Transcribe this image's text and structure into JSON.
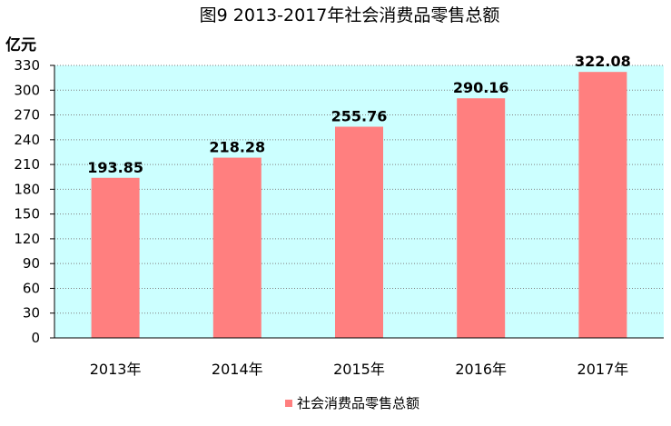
{
  "chart_data": {
    "type": "bar",
    "title": "图9   2013-2017年社会消费品零售总额",
    "ylabel": "亿元",
    "xlabel": "",
    "categories": [
      "2013年",
      "2014年",
      "2015年",
      "2016年",
      "2017年"
    ],
    "series": [
      {
        "name": "社会消费品零售总额",
        "values": [
          193.85,
          218.28,
          255.76,
          290.16,
          322.08
        ],
        "labels": [
          "193.85",
          "218.28",
          "255.76",
          "290.16",
          "322.08"
        ]
      }
    ],
    "ylim": [
      0,
      330
    ],
    "yticks": [
      0,
      30,
      60,
      90,
      120,
      150,
      180,
      210,
      240,
      270,
      300,
      330
    ],
    "grid": true,
    "legend_position": "bottom-center",
    "colors": {
      "bar": "#ff7f7f",
      "plot_background": "#ccffff",
      "grid_dots": "#808080",
      "axis": "#000000"
    }
  }
}
